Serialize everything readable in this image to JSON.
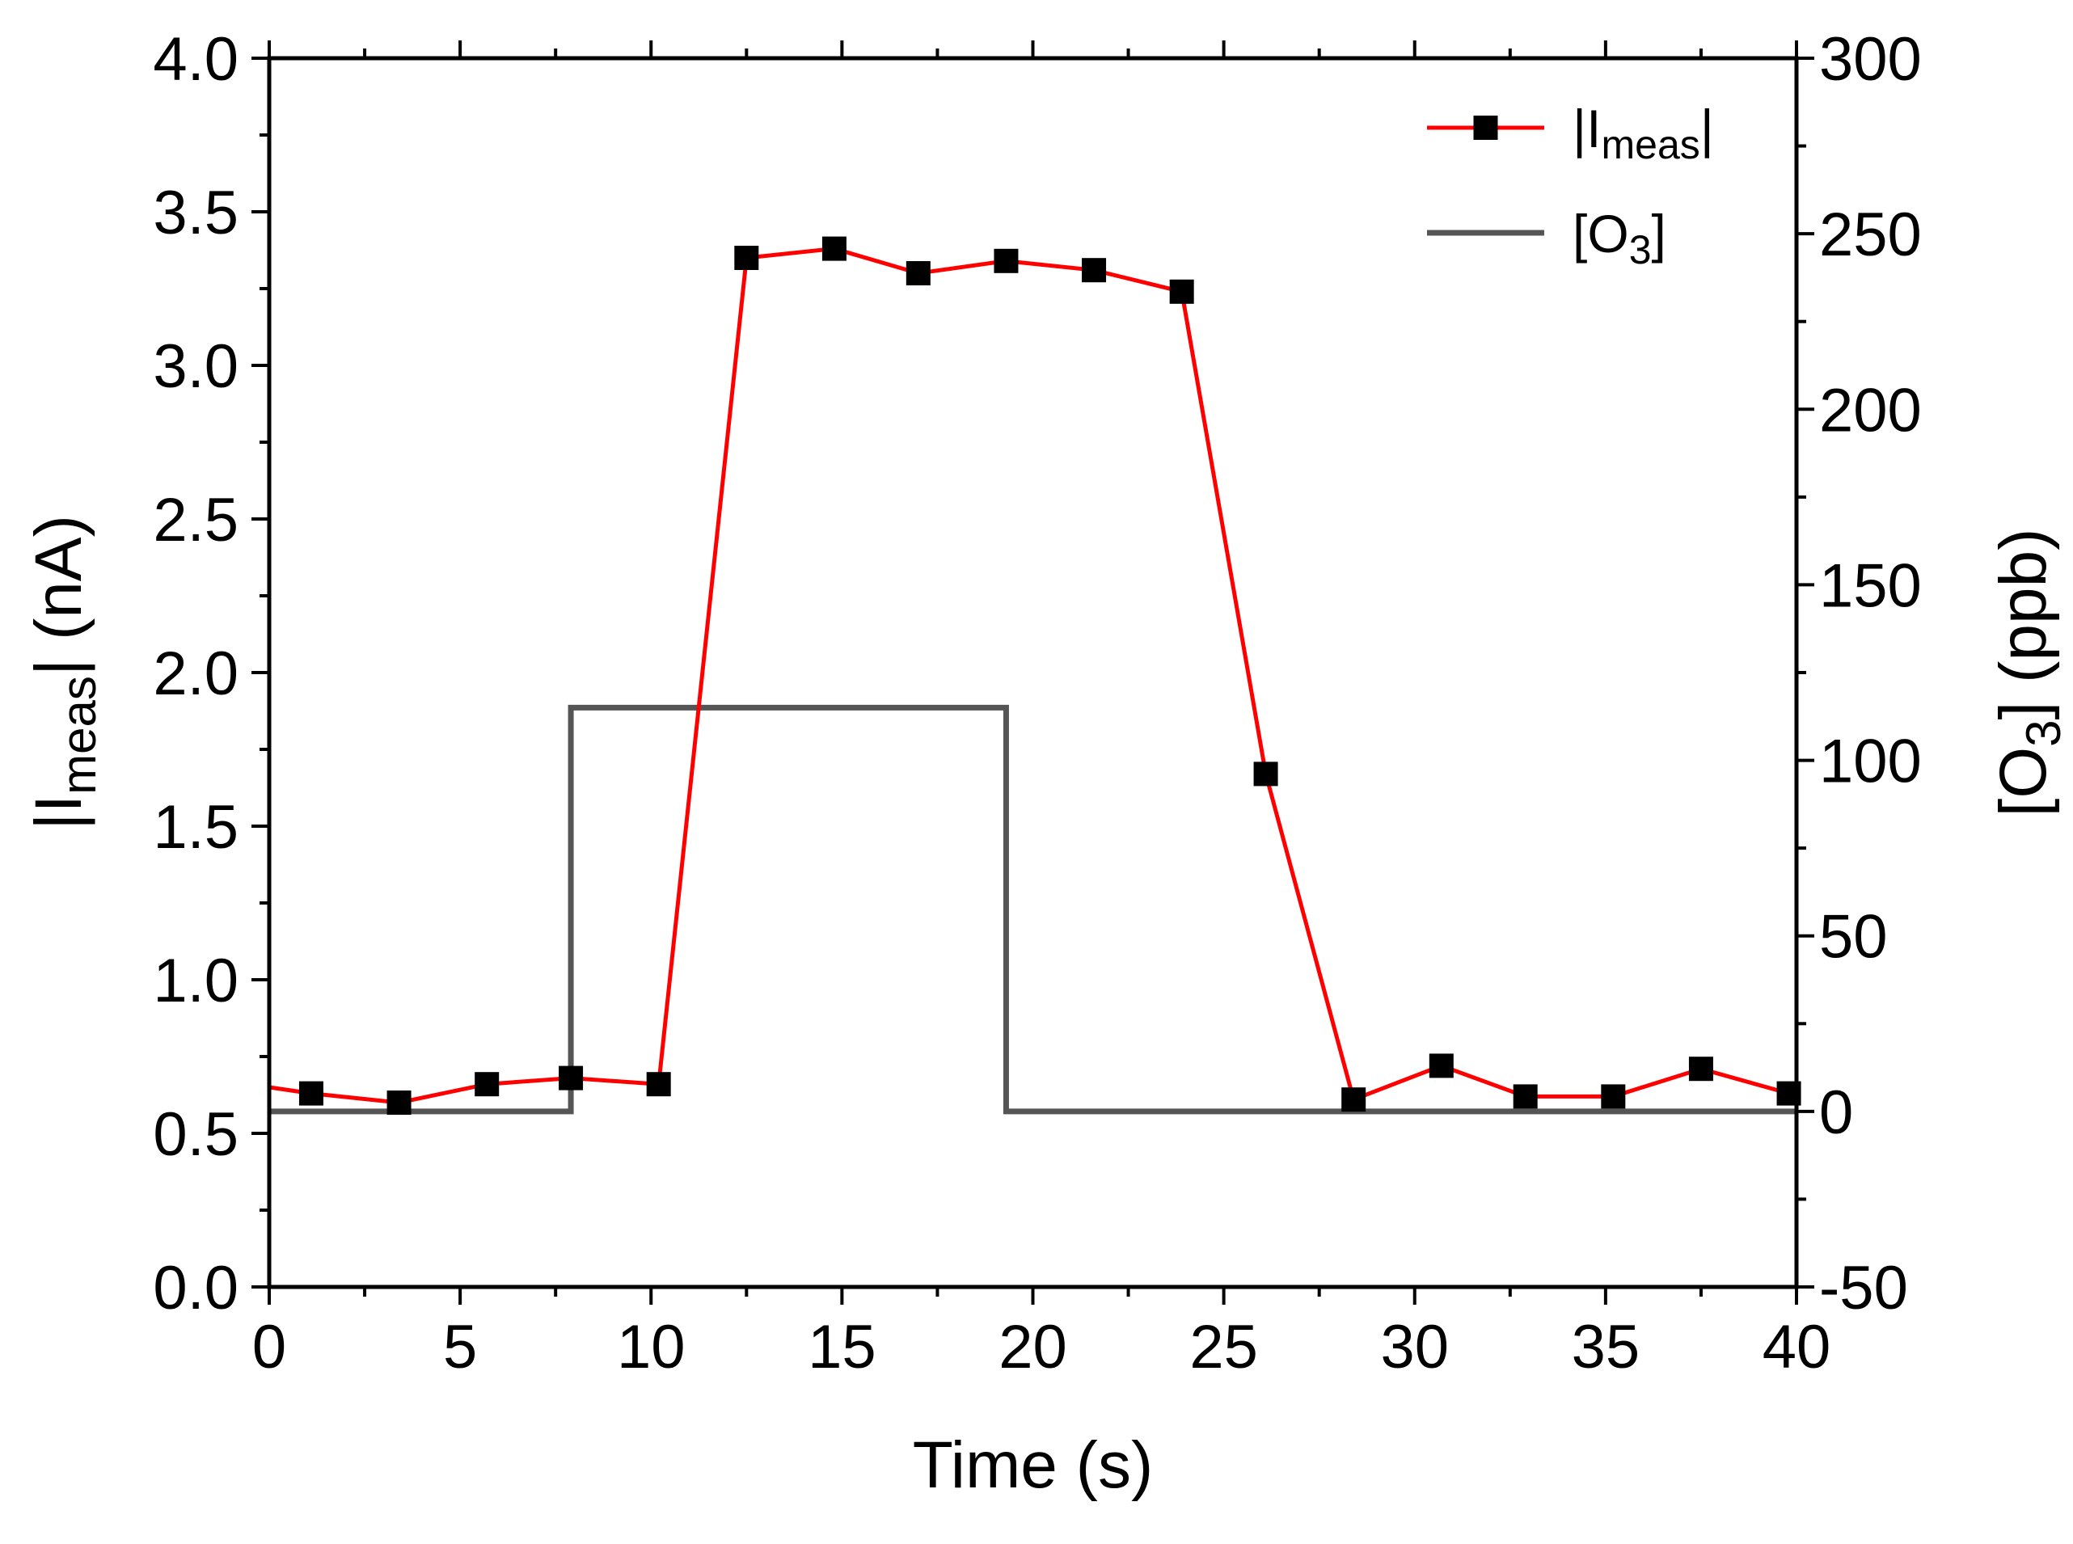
{
  "chart_data": {
    "type": "line",
    "title": "",
    "xlabel": "Time (s)",
    "xlim": [
      0,
      40
    ],
    "x_ticks": [
      "0",
      "5",
      "10",
      "15",
      "20",
      "25",
      "30",
      "35",
      "40"
    ],
    "y_left": {
      "label_main": "|I",
      "label_sub": "meas",
      "label_tail": "| (nA)",
      "lim": [
        0.0,
        4.0
      ],
      "ticks": [
        "0.0",
        "0.5",
        "1.0",
        "1.5",
        "2.0",
        "2.5",
        "3.0",
        "3.5",
        "4.0"
      ]
    },
    "y_right": {
      "label_main": "[O",
      "label_sub": "3",
      "label_tail": "] (ppb)",
      "lim": [
        -50,
        300
      ],
      "ticks": [
        "-50",
        "0",
        "50",
        "100",
        "150",
        "200",
        "250",
        "300"
      ]
    },
    "series": [
      {
        "name": "|Imeas|",
        "legend_main": "|I",
        "legend_sub": "meas",
        "legend_tail": "|",
        "axis": "left",
        "color": "#ff0000",
        "marker": "square",
        "marker_color": "#000000",
        "x": [
          0.0,
          1.1,
          3.4,
          5.7,
          7.9,
          10.2,
          12.5,
          14.8,
          17.0,
          19.3,
          21.6,
          23.9,
          26.1,
          28.4,
          30.7,
          32.9,
          35.2,
          37.5,
          39.8
        ],
        "y": [
          0.65,
          0.63,
          0.6,
          0.66,
          0.68,
          0.66,
          3.35,
          3.38,
          3.3,
          3.34,
          3.31,
          3.24,
          1.67,
          0.61,
          0.72,
          0.62,
          0.62,
          0.71,
          0.63
        ]
      },
      {
        "name": "[O3]",
        "legend_main": "[O",
        "legend_sub": "3",
        "legend_tail": "]",
        "axis": "right",
        "color": "#555555",
        "marker": "none",
        "x": [
          0,
          7.9,
          7.9,
          19.3,
          19.3,
          40
        ],
        "y": [
          0,
          0,
          115,
          115,
          0,
          0
        ]
      }
    ],
    "legend_position": "top-right"
  }
}
